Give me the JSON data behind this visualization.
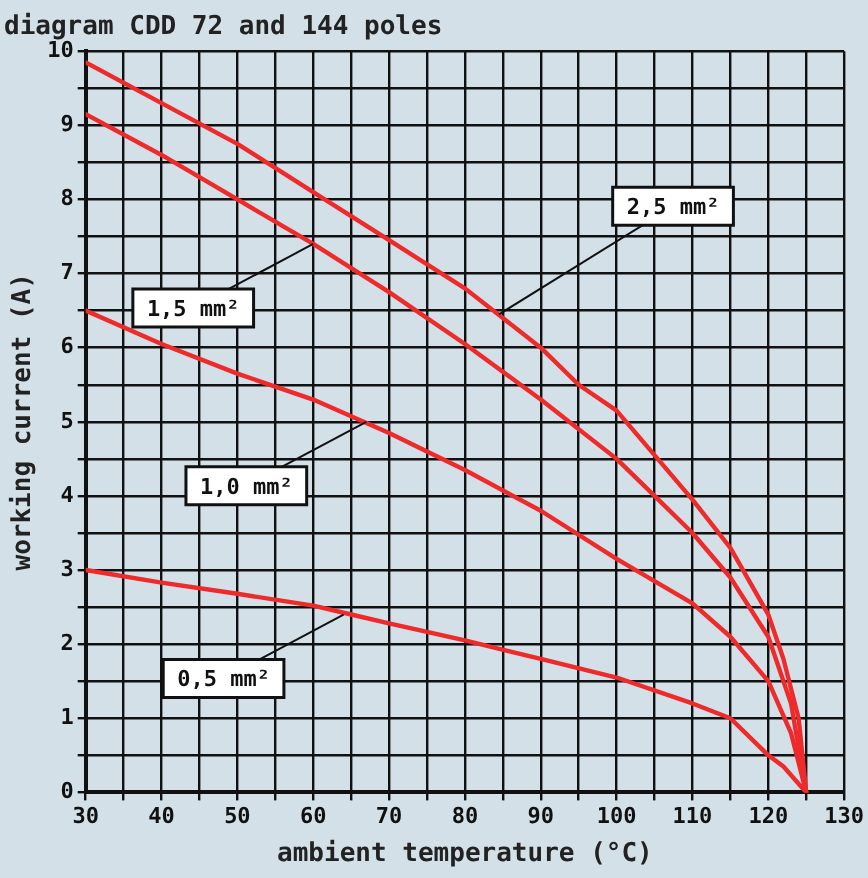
{
  "chart_data": {
    "type": "line",
    "title": "diagram CDD 72 and 144 poles",
    "xlabel": "ambient temperature (°C)",
    "ylabel": "working current (A)",
    "xlim": [
      30,
      130
    ],
    "ylim": [
      0,
      10
    ],
    "xticks": [
      30,
      {
        "value": 35,
        "label": null
      },
      40,
      {
        "value": 45,
        "label": null
      },
      50,
      {
        "value": 55,
        "label": null
      },
      60,
      {
        "value": 65,
        "label": null
      },
      70,
      {
        "value": 75,
        "label": null
      },
      80,
      {
        "value": 85,
        "label": null
      },
      90,
      {
        "value": 95,
        "label": null
      },
      100,
      {
        "value": 105,
        "label": null
      },
      110,
      {
        "value": 115,
        "label": null
      },
      120,
      {
        "value": 125,
        "label": null
      },
      130
    ],
    "yticks": [
      0,
      {
        "value": 0.5,
        "label": null
      },
      1,
      {
        "value": 1.5,
        "label": null
      },
      2,
      {
        "value": 2.5,
        "label": null
      },
      3,
      {
        "value": 3.5,
        "label": null
      },
      4,
      {
        "value": 4.5,
        "label": null
      },
      5,
      {
        "value": 5.5,
        "label": null
      },
      6,
      {
        "value": 6.5,
        "label": null
      },
      7,
      {
        "value": 7.5,
        "label": null
      },
      8,
      {
        "value": 8.5,
        "label": null
      },
      9,
      {
        "value": 9.5,
        "label": null
      },
      10
    ],
    "grid": true,
    "legend": false,
    "marker": "none",
    "line_style": "solid",
    "series": [
      {
        "color": "#ee2a2a",
        "x": [
          30,
          40,
          50,
          60,
          70,
          80,
          85,
          90,
          95,
          100,
          105,
          110,
          115,
          120,
          122,
          124,
          125
        ],
        "values": [
          9.85,
          9.3,
          8.75,
          8.1,
          7.45,
          6.8,
          6.4,
          6.0,
          5.5,
          5.15,
          4.55,
          3.95,
          3.3,
          2.4,
          1.8,
          1.0,
          0
        ]
      },
      {
        "color": "#ee2a2a",
        "x": [
          30,
          40,
          50,
          60,
          70,
          80,
          90,
          100,
          105,
          110,
          115,
          120,
          123,
          125
        ],
        "values": [
          9.15,
          8.6,
          8.0,
          7.4,
          6.75,
          6.05,
          5.3,
          4.5,
          4.0,
          3.5,
          2.9,
          2.1,
          1.2,
          0
        ]
      },
      {
        "color": "#ee2a2a",
        "x": [
          30,
          40,
          50,
          60,
          70,
          80,
          90,
          100,
          110,
          115,
          120,
          123,
          125
        ],
        "values": [
          6.5,
          6.05,
          5.65,
          5.3,
          4.85,
          4.35,
          3.8,
          3.15,
          2.55,
          2.1,
          1.5,
          0.8,
          0
        ]
      },
      {
        "color": "#ee2a2a",
        "x": [
          30,
          40,
          50,
          60,
          65,
          70,
          80,
          90,
          100,
          110,
          115,
          120,
          122,
          125
        ],
        "values": [
          3.0,
          2.83,
          2.68,
          2.52,
          2.4,
          2.28,
          2.05,
          1.8,
          1.55,
          1.2,
          1.0,
          0.5,
          0.35,
          0
        ]
      }
    ],
    "annotations": [
      {
        "text": "2,5 mm²",
        "x": 84.5,
        "y": 6.45
      },
      {
        "text": "1,5 mm²",
        "x": 60,
        "y": 7.4
      },
      {
        "text": "1,0 mm²",
        "x": 67,
        "y": 5.0
      },
      {
        "text": "0,5 mm²",
        "x": 64,
        "y": 2.4
      }
    ]
  }
}
